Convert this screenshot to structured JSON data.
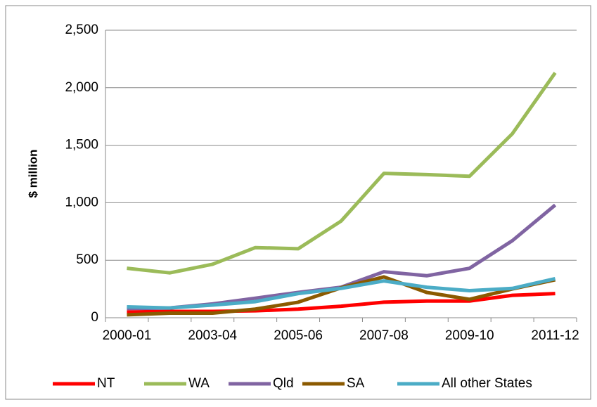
{
  "chart_data": {
    "type": "line",
    "y_label": "$ million",
    "categories": [
      "2000-01",
      null,
      "2003-04",
      null,
      "2005-06",
      null,
      "2007-08",
      null,
      "2009-10",
      null,
      "2011-12"
    ],
    "series": [
      {
        "name": "NT",
        "color": "#ff0000",
        "values": [
          50,
          55,
          55,
          60,
          75,
          100,
          135,
          145,
          145,
          195,
          210
        ]
      },
      {
        "name": "WA",
        "color": "#9bbb59",
        "values": [
          430,
          390,
          465,
          610,
          600,
          840,
          1255,
          1245,
          1230,
          1600,
          2130
        ]
      },
      {
        "name": "Qld",
        "color": "#8064a2",
        "values": [
          80,
          85,
          120,
          170,
          220,
          265,
          400,
          365,
          430,
          670,
          980
        ]
      },
      {
        "name": "SA",
        "color": "#8b5a00",
        "values": [
          25,
          40,
          40,
          75,
          135,
          260,
          355,
          220,
          160,
          250,
          330
        ]
      },
      {
        "name": "All other States",
        "color": "#4bacc6",
        "values": [
          95,
          85,
          110,
          140,
          210,
          255,
          320,
          265,
          235,
          255,
          340
        ]
      }
    ],
    "ylim": [
      0,
      2500
    ],
    "yticks": [
      0,
      {
        "value": 500,
        "label": "500"
      },
      {
        "value": 1000,
        "label": "1,000"
      },
      {
        "value": 1500,
        "label": "1,500"
      },
      {
        "value": 2000,
        "label": "2,000"
      },
      {
        "value": 2500,
        "label": "2,500"
      }
    ],
    "grid": true,
    "legend": "bottom"
  }
}
